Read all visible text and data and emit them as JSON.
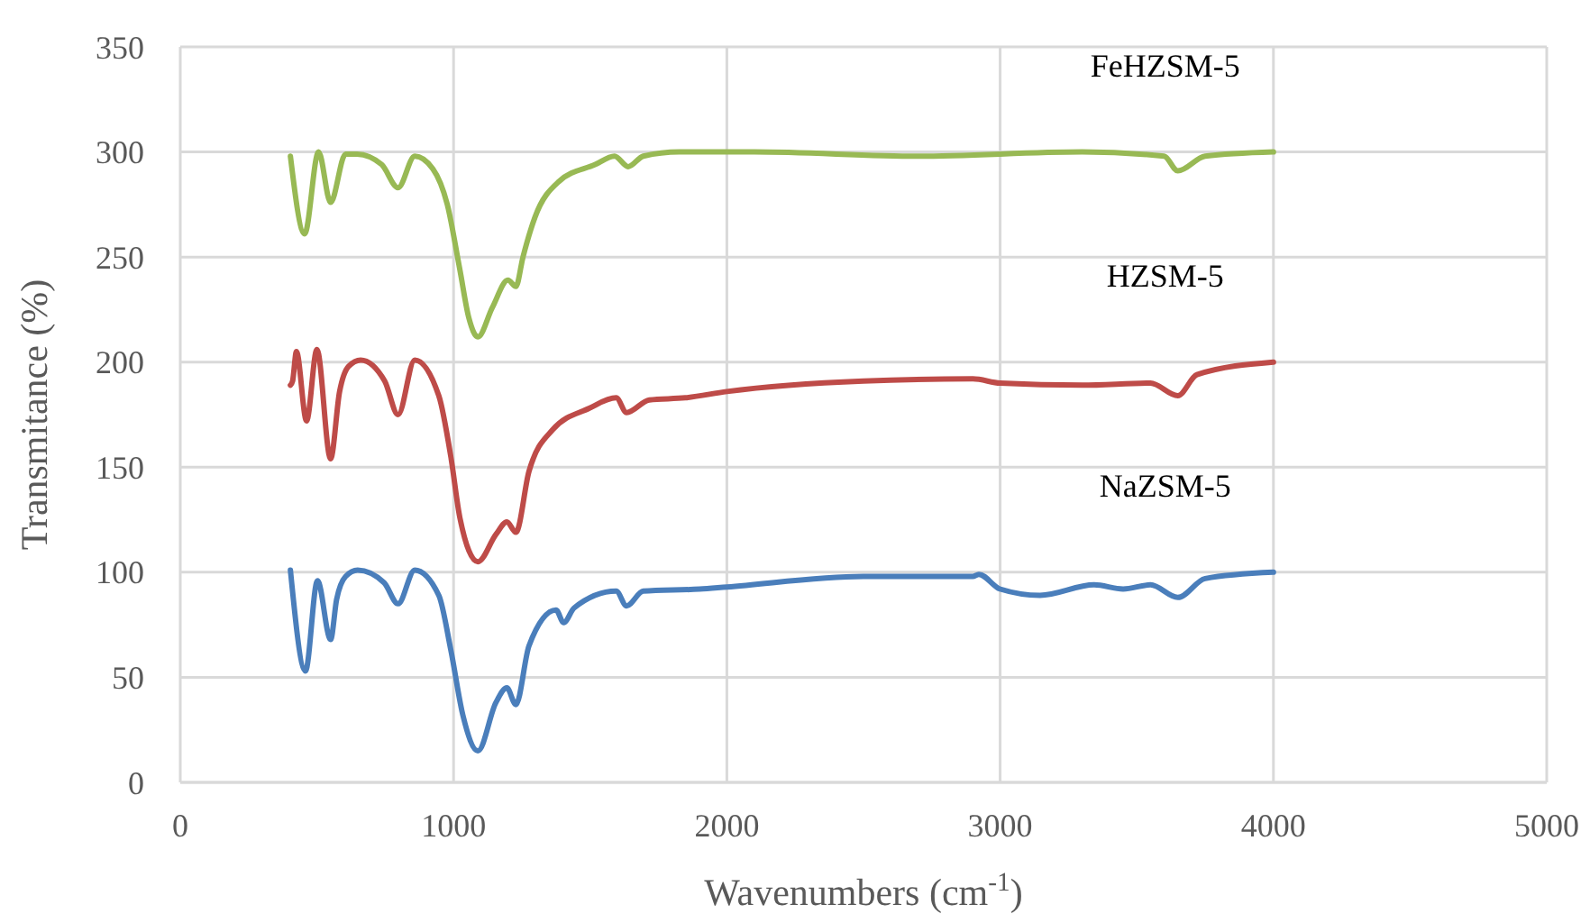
{
  "chart_data": {
    "type": "line",
    "xlabel": "Wavenumbers (cm$^{-1}$)",
    "ylabel": "Transmitance (%)",
    "xlim": [
      0,
      5000
    ],
    "ylim": [
      0,
      350
    ],
    "xticks": [
      0,
      1000,
      2000,
      3000,
      4000,
      5000
    ],
    "yticks": [
      0,
      50,
      100,
      150,
      200,
      250,
      300,
      350
    ],
    "grid": true,
    "marker": "none",
    "line_style": "solid",
    "series": [
      {
        "name": "NaZSM-5",
        "color": "#4a7ebb",
        "x": [
          403,
          458,
          502,
          550,
          572,
          605,
          649,
          746,
          797,
          858,
          946,
          990,
          1034,
          1089,
          1155,
          1195,
          1228,
          1276,
          1375,
          1403,
          1441,
          1595,
          1633,
          1694,
          1900,
          2000,
          2500,
          2900,
          2922,
          3000,
          3146,
          3344,
          3450,
          3550,
          3650,
          3750,
          4000
        ],
        "values": [
          101,
          53,
          96,
          68,
          87,
          98,
          101,
          95,
          85,
          101,
          89,
          63,
          32,
          15,
          38,
          45,
          37,
          65,
          82,
          76,
          83,
          91,
          84,
          91,
          92,
          93,
          98,
          98,
          99,
          92,
          89,
          94,
          92,
          94,
          88,
          97,
          100
        ]
      },
      {
        "name": "HZSM-5",
        "color": "#be4b48",
        "x": [
          403,
          411,
          425,
          462,
          500,
          550,
          583,
          616,
          660,
          748,
          797,
          858,
          946,
          990,
          1023,
          1089,
          1155,
          1195,
          1228,
          1276,
          1364,
          1496,
          1595,
          1633,
          1716,
          1848,
          2000,
          2500,
          2900,
          3000,
          3300,
          3550,
          3650,
          3720,
          4000
        ],
        "values": [
          189,
          191,
          205,
          172,
          206,
          154,
          186,
          198,
          201,
          191,
          175,
          201,
          184,
          155,
          126,
          105,
          118,
          124,
          119,
          148,
          168,
          178,
          183,
          176,
          182,
          183,
          186,
          191,
          192,
          190,
          189,
          190,
          184,
          194,
          200
        ]
      },
      {
        "name": "FeHZSM-5",
        "color": "#98b954",
        "x": [
          403,
          455,
          506,
          550,
          605,
          647,
          737,
          797,
          858,
          924,
          977,
          1023,
          1056,
          1089,
          1142,
          1199,
          1228,
          1254,
          1298,
          1386,
          1518,
          1589,
          1639,
          1694,
          1826,
          2100,
          2700,
          3300,
          3600,
          3650,
          3750,
          4000
        ],
        "values": [
          298,
          261,
          300,
          276,
          299,
          299,
          294,
          283,
          298,
          292,
          275,
          244,
          221,
          212,
          226,
          239,
          236,
          250,
          269,
          286,
          294,
          298,
          293,
          298,
          300,
          300,
          298,
          300,
          298,
          291,
          298,
          300
        ]
      }
    ]
  }
}
